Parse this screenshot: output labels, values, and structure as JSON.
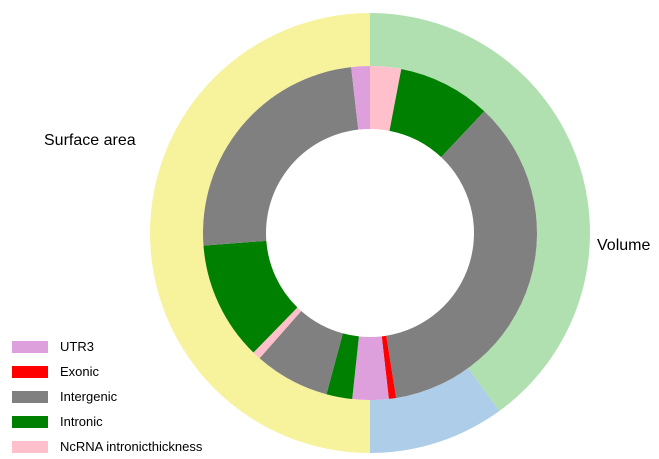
{
  "chart_data": {
    "type": "donut",
    "outer_ring": [
      {
        "label": "Surface area",
        "value": 40,
        "color": "#b0dfb0"
      },
      {
        "label": "",
        "value": 10,
        "color": "#aecde8"
      },
      {
        "label": "Volume",
        "value": 50,
        "color": "#f7f29c"
      }
    ],
    "inner_ring": [
      {
        "category": "NcRNA intronicthickness",
        "value": 3,
        "color": "#ffc0cb"
      },
      {
        "category": "Intronic",
        "value": 9,
        "color": "#008000"
      },
      {
        "category": "Intergenic",
        "value": 35.5,
        "color": "#808080"
      },
      {
        "category": "Exonic",
        "value": 0.7,
        "color": "#ff0000"
      },
      {
        "category": "UTR3",
        "value": 3.5,
        "color": "#dda0dd"
      },
      {
        "category": "Intronic",
        "value": 2.5,
        "color": "#008000"
      },
      {
        "category": "Intergenic",
        "value": 7.3,
        "color": "#808080"
      },
      {
        "category": "NcRNA intronicthickness",
        "value": 0.8,
        "color": "#ffc0cb"
      },
      {
        "category": "Intronic",
        "value": 11.5,
        "color": "#008000"
      },
      {
        "category": "Intergenic",
        "value": 24.4,
        "color": "#808080"
      },
      {
        "category": "UTR3",
        "value": 1.8,
        "color": "#dda0dd"
      }
    ],
    "legend": [
      {
        "label": "UTR3",
        "color": "#dda0dd"
      },
      {
        "label": "Exonic",
        "color": "#ff0000"
      },
      {
        "label": "Intergenic",
        "color": "#808080"
      },
      {
        "label": "Intronic",
        "color": "#008000"
      },
      {
        "label": "NcRNA intronicthickness",
        "color": "#ffc0cb"
      }
    ],
    "legend_position": "bottom-left",
    "outer_labels": {
      "surface": "Surface area",
      "volume": "Volume"
    }
  }
}
